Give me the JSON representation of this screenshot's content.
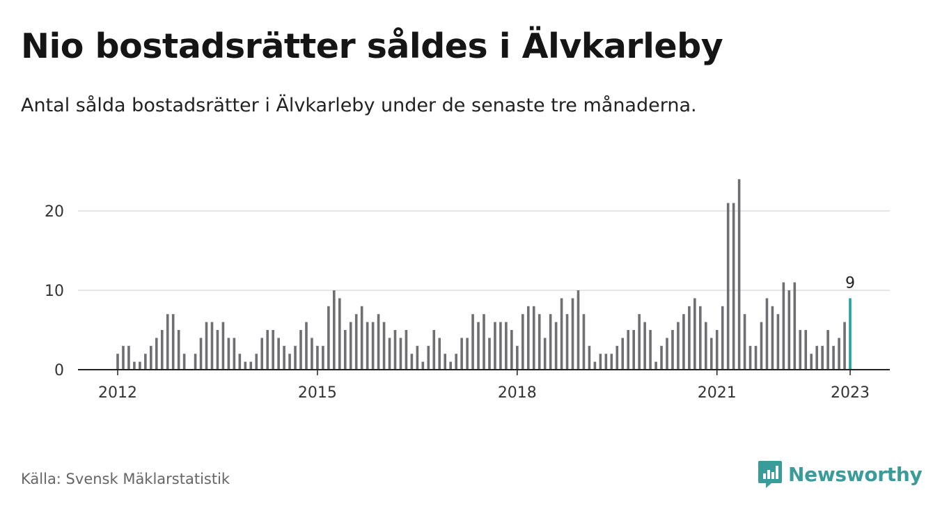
{
  "title": "Nio bostadsrätter såldes i Älvkarleby",
  "subtitle": "Antal sålda bostadsrätter i Älvkarleby under de senaste tre månaderna.",
  "source": "Källa: Svensk Mäklarstatistik",
  "brand": {
    "name": "Newsworthy",
    "icon": "newsworthy-logo-icon",
    "color": "#3a9c9a"
  },
  "colors": {
    "bar": "#6e6e73",
    "highlight": "#1fa3a0",
    "grid": "#dddddd",
    "axis": "#222222"
  },
  "chart_data": {
    "type": "bar",
    "x_start": "2012-01",
    "x_end": "2023-01",
    "frequency": "monthly",
    "xticks": [
      "2012",
      "2015",
      "2018",
      "2021",
      "2023"
    ],
    "yticks": [
      0,
      10,
      20
    ],
    "ylim": [
      0,
      24
    ],
    "grid": true,
    "highlight_last": true,
    "annotation": {
      "text": "9",
      "x": "2023-01"
    },
    "values": [
      2,
      3,
      3,
      1,
      1,
      2,
      3,
      4,
      5,
      7,
      7,
      5,
      2,
      0,
      2,
      4,
      6,
      6,
      5,
      6,
      4,
      4,
      2,
      1,
      1,
      2,
      4,
      5,
      5,
      4,
      3,
      2,
      3,
      5,
      6,
      4,
      3,
      3,
      8,
      10,
      9,
      5,
      6,
      7,
      8,
      6,
      6,
      7,
      6,
      4,
      5,
      4,
      5,
      2,
      3,
      1,
      3,
      5,
      4,
      2,
      1,
      2,
      4,
      4,
      7,
      6,
      7,
      4,
      6,
      6,
      6,
      5,
      3,
      7,
      8,
      8,
      7,
      4,
      7,
      6,
      9,
      7,
      9,
      10,
      7,
      3,
      1,
      2,
      2,
      2,
      3,
      4,
      5,
      5,
      7,
      6,
      5,
      1,
      3,
      4,
      5,
      6,
      7,
      8,
      9,
      8,
      6,
      4,
      5,
      8,
      21,
      21,
      24,
      7,
      3,
      3,
      6,
      9,
      8,
      7,
      11,
      10,
      11,
      5,
      5,
      2,
      3,
      3,
      5,
      3,
      4,
      6,
      9
    ]
  }
}
